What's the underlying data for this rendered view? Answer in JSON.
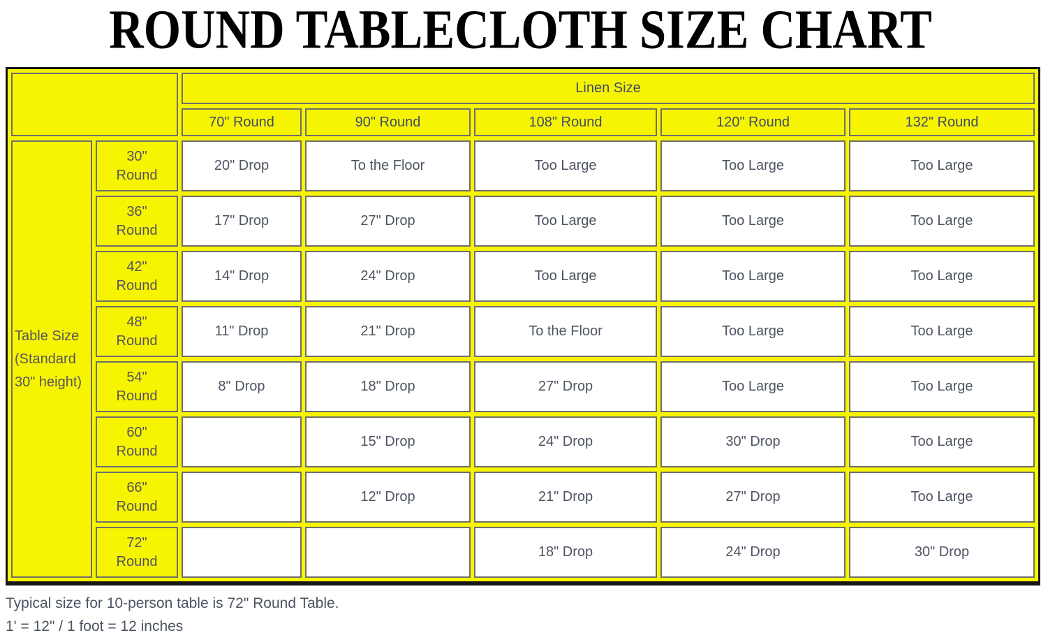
{
  "title": "ROUND TABLECLOTH SIZE CHART",
  "colors": {
    "header_bg": "#f7f402",
    "cell_bg": "#ffffff",
    "cell_border": "#6e6e6e",
    "outer_border": "#161616",
    "header_text": "#3e4c68",
    "cell_text": "#4d5462"
  },
  "table": {
    "linen_size_label": "Linen Size",
    "row_group_label": "Table Size (Standard 30\" height)",
    "columns": [
      "70\" Round",
      "90\" Round",
      "108\" Round",
      "120\" Round",
      "132\" Round"
    ],
    "rows": [
      {
        "size": "30\"",
        "unit": "Round",
        "cells": [
          "20\" Drop",
          "To the Floor",
          "Too Large",
          "Too Large",
          "Too Large"
        ]
      },
      {
        "size": "36\"",
        "unit": "Round",
        "cells": [
          "17\" Drop",
          "27\" Drop",
          "Too Large",
          "Too Large",
          "Too Large"
        ]
      },
      {
        "size": "42\"",
        "unit": "Round",
        "cells": [
          "14\" Drop",
          "24\" Drop",
          "Too Large",
          "Too Large",
          "Too Large"
        ]
      },
      {
        "size": "48\"",
        "unit": "Round",
        "cells": [
          "11\" Drop",
          "21\" Drop",
          "To the Floor",
          "Too Large",
          "Too Large"
        ]
      },
      {
        "size": "54\"",
        "unit": "Round",
        "cells": [
          "8\" Drop",
          "18\" Drop",
          "27\" Drop",
          "Too Large",
          "Too Large"
        ]
      },
      {
        "size": "60\"",
        "unit": "Round",
        "cells": [
          "",
          "15\" Drop",
          "24\" Drop",
          "30\" Drop",
          "Too Large"
        ]
      },
      {
        "size": "66\"",
        "unit": "Round",
        "cells": [
          "",
          "12\" Drop",
          "21\" Drop",
          "27\" Drop",
          "Too Large"
        ]
      },
      {
        "size": "72\"",
        "unit": "Round",
        "cells": [
          "",
          "",
          "18\" Drop",
          "24\" Drop",
          "30\" Drop"
        ]
      }
    ]
  },
  "footer": {
    "note1": "Typical size for 10-person table is 72\" Round Table.",
    "note2": "1' = 12\" / 1 foot = 12 inches"
  },
  "chart_data": {
    "type": "table",
    "title": "ROUND TABLECLOTH SIZE CHART",
    "column_group_label": "Linen Size",
    "row_group_label": "Table Size (Standard 30\" height)",
    "columns": [
      "70\" Round",
      "90\" Round",
      "108\" Round",
      "120\" Round",
      "132\" Round"
    ],
    "row_labels": [
      "30\" Round",
      "36\" Round",
      "42\" Round",
      "48\" Round",
      "54\" Round",
      "60\" Round",
      "66\" Round",
      "72\" Round"
    ],
    "values": [
      [
        "20\" Drop",
        "To the Floor",
        "Too Large",
        "Too Large",
        "Too Large"
      ],
      [
        "17\" Drop",
        "27\" Drop",
        "Too Large",
        "Too Large",
        "Too Large"
      ],
      [
        "14\" Drop",
        "24\" Drop",
        "Too Large",
        "Too Large",
        "Too Large"
      ],
      [
        "11\" Drop",
        "21\" Drop",
        "To the Floor",
        "Too Large",
        "Too Large"
      ],
      [
        "8\" Drop",
        "18\" Drop",
        "27\" Drop",
        "Too Large",
        "Too Large"
      ],
      [
        "",
        "15\" Drop",
        "24\" Drop",
        "30\" Drop",
        "Too Large"
      ],
      [
        "",
        "12\" Drop",
        "21\" Drop",
        "27\" Drop",
        "Too Large"
      ],
      [
        "",
        "",
        "18\" Drop",
        "24\" Drop",
        "30\" Drop"
      ]
    ],
    "notes": [
      "Typical size for 10-person table is 72\" Round Table.",
      "1' = 12\" / 1 foot = 12 inches"
    ]
  }
}
